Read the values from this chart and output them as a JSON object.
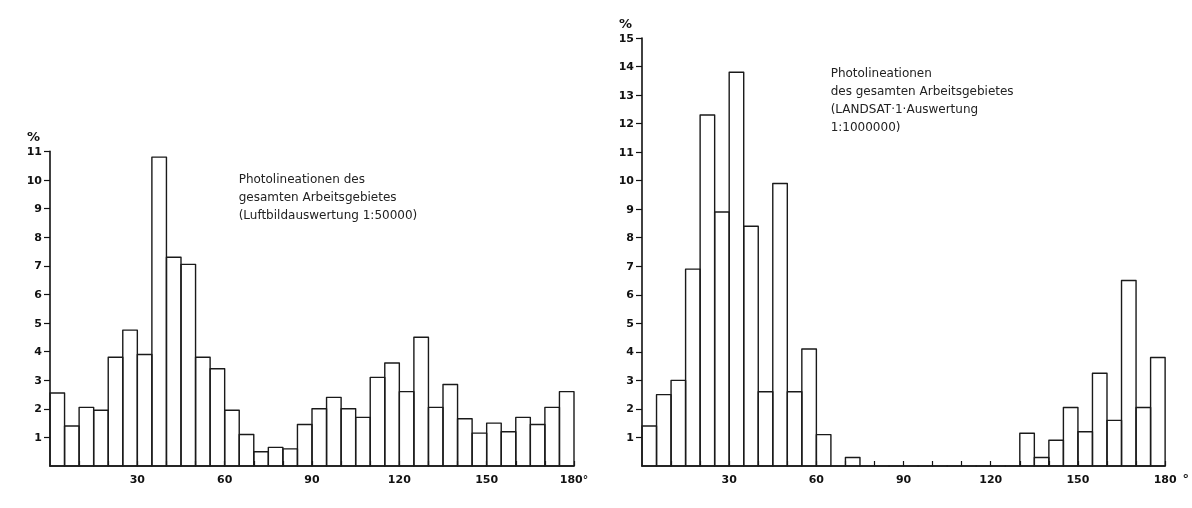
{
  "chart_data": [
    {
      "type": "histogram",
      "color": "#1a1a1a",
      "ylabel": "%",
      "annotations": [
        "Photolineationen des\ngesamten Arbeitsgebietes\n(Luftbildauswertung 1:50000)"
      ],
      "bins": [
        0,
        5,
        10,
        15,
        20,
        25,
        30,
        35,
        40,
        45,
        50,
        55,
        60,
        65,
        70,
        75,
        80,
        85,
        90,
        95,
        100,
        105,
        110,
        115,
        120,
        125,
        130,
        135,
        140,
        145,
        150,
        155,
        160,
        165,
        170,
        175,
        180
      ],
      "values": [
        2.55,
        1.4,
        2.05,
        1.95,
        3.8,
        4.75,
        3.9,
        10.8,
        7.3,
        7.05,
        3.8,
        3.4,
        1.95,
        1.1,
        0.5,
        0.65,
        0.6,
        1.45,
        2.0,
        2.4,
        2.0,
        1.7,
        3.1,
        3.6,
        2.6,
        4.5,
        2.05,
        2.85,
        1.65,
        1.15,
        1.5,
        1.2,
        1.7,
        1.45,
        2.05,
        2.6
      ],
      "xlim": [
        0,
        180
      ],
      "ylim": [
        0,
        11
      ],
      "xticks": [
        {
          "value": 10,
          "label": null
        },
        {
          "value": 20,
          "label": null
        },
        30,
        {
          "value": 40,
          "label": null
        },
        {
          "value": 50,
          "label": null
        },
        60,
        {
          "value": 70,
          "label": null
        },
        {
          "value": 80,
          "label": null
        },
        90,
        {
          "value": 100,
          "label": null
        },
        {
          "value": 110,
          "label": null
        },
        120,
        {
          "value": 130,
          "label": null
        },
        {
          "value": 140,
          "label": null
        },
        150,
        {
          "value": 160,
          "label": null
        },
        {
          "value": 170,
          "label": null
        },
        {
          "value": 180,
          "label": "180°"
        }
      ],
      "yticks": [
        1,
        2,
        3,
        4,
        5,
        6,
        7,
        8,
        9,
        10,
        11
      ]
    },
    {
      "type": "histogram",
      "color": "#1a1a1a",
      "ylabel": "%",
      "xlabel": "°",
      "annotations": [
        "Photolineationen\ndes gesamten Arbeitsgebietes\n(LANDSAT·1·Auswertung\n1:1000000)"
      ],
      "bins": [
        0,
        5,
        10,
        15,
        20,
        25,
        30,
        35,
        40,
        45,
        50,
        55,
        60,
        65,
        70,
        75,
        80,
        85,
        90,
        95,
        100,
        105,
        110,
        115,
        120,
        125,
        130,
        135,
        140,
        145,
        150,
        155,
        160,
        165,
        170,
        175,
        180
      ],
      "values": [
        1.4,
        2.5,
        3.0,
        6.9,
        12.3,
        8.9,
        13.8,
        8.4,
        2.6,
        9.9,
        2.6,
        4.1,
        1.1,
        0,
        0.3,
        0,
        0,
        0,
        0,
        0,
        0,
        0,
        0,
        0,
        0,
        0,
        1.15,
        0.3,
        0.9,
        2.05,
        1.2,
        3.25,
        1.6,
        6.5,
        2.05,
        3.8
      ],
      "xlim": [
        0,
        180
      ],
      "ylim": [
        0,
        15
      ],
      "xticks": [
        {
          "value": 10,
          "label": null
        },
        {
          "value": 20,
          "label": null
        },
        30,
        {
          "value": 40,
          "label": null
        },
        {
          "value": 50,
          "label": null
        },
        60,
        {
          "value": 70,
          "label": null
        },
        {
          "value": 80,
          "label": null
        },
        90,
        {
          "value": 100,
          "label": null
        },
        {
          "value": 110,
          "label": null
        },
        120,
        {
          "value": 130,
          "label": null
        },
        {
          "value": 140,
          "label": null
        },
        150,
        {
          "value": 160,
          "label": null
        },
        {
          "value": 170,
          "label": null
        },
        180
      ],
      "yticks": [
        1,
        2,
        3,
        4,
        5,
        6,
        7,
        8,
        9,
        10,
        11,
        12,
        13,
        14,
        15
      ]
    }
  ]
}
